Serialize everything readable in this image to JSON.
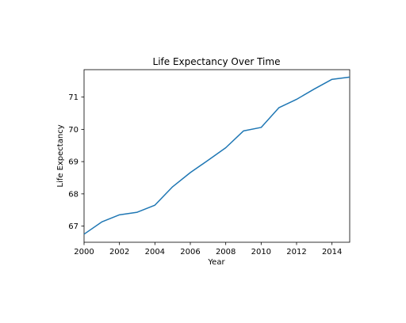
{
  "chart_data": {
    "type": "line",
    "title": "Life Expectancy Over Time",
    "xlabel": "Year",
    "ylabel": "Life Expectancy",
    "xlim": [
      2000,
      2015
    ],
    "ylim": [
      66.5,
      71.85
    ],
    "xticks": [
      2000,
      2002,
      2004,
      2006,
      2008,
      2010,
      2012,
      2014
    ],
    "yticks": [
      67,
      68,
      69,
      70,
      71
    ],
    "grid": false,
    "series": [
      {
        "color": "#1f77b4",
        "x": [
          2000,
          2001,
          2002,
          2003,
          2004,
          2005,
          2006,
          2007,
          2008,
          2009,
          2010,
          2011,
          2012,
          2013,
          2014,
          2015
        ],
        "y": [
          66.75,
          67.13,
          67.35,
          67.43,
          67.65,
          68.22,
          68.66,
          69.04,
          69.43,
          69.95,
          70.06,
          70.67,
          70.93,
          71.25,
          71.55,
          71.62
        ]
      }
    ]
  }
}
